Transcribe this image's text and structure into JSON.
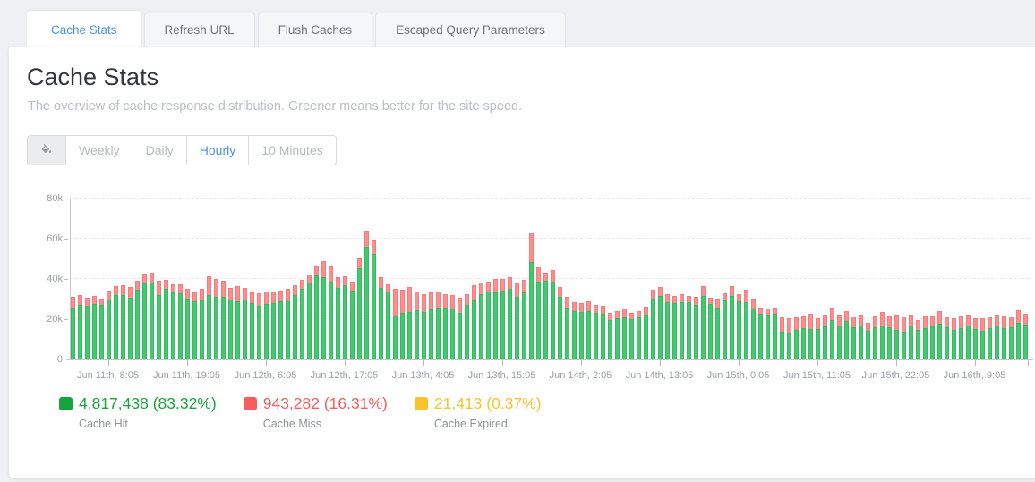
{
  "colors": {
    "accent": "#4a90e2",
    "hit_fill": "#45c76f",
    "hit_border": "#2fbe5f",
    "miss_fill": "#f98f8f",
    "miss_border": "#f87a7a"
  },
  "tabs": [
    {
      "label": "Cache Stats",
      "active": true
    },
    {
      "label": "Refresh URL",
      "active": false
    },
    {
      "label": "Flush Caches",
      "active": false
    },
    {
      "label": "Escaped Query Parameters",
      "active": false
    }
  ],
  "page": {
    "title": "Cache Stats",
    "subtitle": "The overview of cache response distribution. Greener means better for the site speed."
  },
  "controls": {
    "icon": "paint-bucket-icon",
    "options": [
      "Weekly",
      "Daily",
      "Hourly",
      "10 Minutes"
    ],
    "active": "Hourly"
  },
  "chart_data": {
    "type": "bar",
    "stacked": true,
    "x_unit": "hour",
    "ylim": [
      0,
      80000
    ],
    "grid": true,
    "y_ticks": [
      {
        "label": "0",
        "value": 0
      },
      {
        "label": "20k",
        "value": 20000
      },
      {
        "label": "40k",
        "value": 40000
      },
      {
        "label": "60k",
        "value": 60000
      },
      {
        "label": "80k",
        "value": 80000
      }
    ],
    "x_ticks": [
      {
        "label": "Jun 11th, 8:05",
        "bar": 5
      },
      {
        "label": "Jun 11th, 19:05",
        "bar": 16
      },
      {
        "label": "Jun 12th, 6:05",
        "bar": 27
      },
      {
        "label": "Jun 12th, 17:05",
        "bar": 38
      },
      {
        "label": "Jun 13th, 4:05",
        "bar": 49
      },
      {
        "label": "Jun 13th, 15:05",
        "bar": 60
      },
      {
        "label": "Jun 14th, 2:05",
        "bar": 71
      },
      {
        "label": "Jun 14th, 13:05",
        "bar": 82
      },
      {
        "label": "Jun 15th, 0:05",
        "bar": 93
      },
      {
        "label": "Jun 15th, 11:05",
        "bar": 104
      },
      {
        "label": "Jun 15th, 22:05",
        "bar": 115
      },
      {
        "label": "Jun 16th, 9:05",
        "bar": 126
      }
    ],
    "end_tick": true,
    "series": [
      {
        "name": "Cache Hit",
        "values": [
          25800,
          27100,
          26700,
          27400,
          27000,
          29600,
          31900,
          32100,
          30800,
          34500,
          37800,
          38200,
          31900,
          35100,
          33300,
          33000,
          30100,
          28900,
          29500,
          32000,
          31300,
          30900,
          29800,
          28700,
          29800,
          27800,
          26700,
          27400,
          28100,
          28700,
          29100,
          31900,
          35300,
          38300,
          41600,
          41000,
          38800,
          35600,
          37100,
          34200,
          45200,
          55900,
          52300,
          35600,
          33600,
          21600,
          23000,
          23700,
          24400,
          23700,
          25100,
          26000,
          25800,
          25300,
          23000,
          27100,
          29200,
          32600,
          34000,
          33300,
          34200,
          35300,
          31200,
          33300,
          48400,
          38800,
          39000,
          38700,
          31200,
          26000,
          23800,
          23500,
          24100,
          23100,
          22700,
          19600,
          20300,
          21000,
          19900,
          20700,
          22400,
          30200,
          31600,
          28400,
          27800,
          28400,
          28400,
          27000,
          31600,
          27400,
          26000,
          29200,
          31600,
          28800,
          28400,
          25200,
          22700,
          22100,
          22700,
          13900,
          13200,
          14600,
          15600,
          15000,
          15300,
          16500,
          19600,
          17000,
          19300,
          16000,
          16700,
          14200,
          15800,
          17000,
          16200,
          14800,
          13600,
          16700,
          14500,
          15400,
          16300,
          17800,
          16000,
          14800,
          15500,
          16800,
          15000,
          14200,
          15600,
          16900,
          15400,
          16100,
          18300,
          17200
        ]
      },
      {
        "name": "Cache Miss",
        "values": [
          5300,
          5000,
          4000,
          4200,
          3400,
          4500,
          4700,
          4800,
          5100,
          4800,
          4700,
          4800,
          7400,
          4500,
          4200,
          4500,
          5000,
          4400,
          5500,
          9300,
          8700,
          8400,
          5800,
          7600,
          5800,
          5500,
          6300,
          6500,
          5800,
          5700,
          5800,
          5100,
          4400,
          3900,
          4600,
          7900,
          7500,
          5500,
          4400,
          4600,
          5200,
          7900,
          7300,
          5500,
          3800,
          13700,
          11700,
          12300,
          9300,
          8900,
          8200,
          8000,
          6800,
          6600,
          7500,
          5500,
          7500,
          5500,
          4800,
          6800,
          5900,
          5800,
          6900,
          6400,
          14600,
          6800,
          4300,
          5700,
          4700,
          4900,
          4600,
          4300,
          4700,
          3900,
          4000,
          3500,
          3800,
          4200,
          3200,
          3100,
          3800,
          4300,
          4300,
          4200,
          3800,
          3900,
          3200,
          3900,
          4700,
          3200,
          4200,
          3800,
          5000,
          3800,
          6100,
          5000,
          3300,
          3100,
          3300,
          7100,
          7100,
          6400,
          6100,
          7700,
          5000,
          5600,
          6400,
          5400,
          4500,
          5300,
          5400,
          4200,
          6000,
          6500,
          5600,
          7400,
          7700,
          5600,
          5000,
          6200,
          5600,
          6100,
          5000,
          5600,
          6500,
          5500,
          5300,
          6100,
          5800,
          5200,
          6300,
          5400,
          6200,
          5400
        ]
      }
    ]
  },
  "legend": [
    {
      "label": "Cache Hit",
      "value": "4,817,438 (83.32%)",
      "color": "#16a53c"
    },
    {
      "label": "Cache Miss",
      "value": "943,282 (16.31%)",
      "color": "#f85c5c"
    },
    {
      "label": "Cache Expired",
      "value": "21,413 (0.37%)",
      "color": "#f8c32d"
    }
  ]
}
